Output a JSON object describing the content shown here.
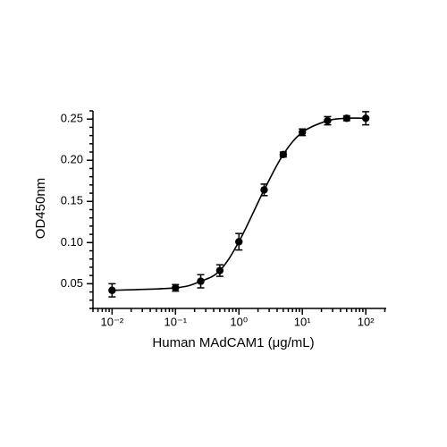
{
  "chart_data": {
    "type": "scatter",
    "x_label": "Human MAdCAM1 (μg/mL)",
    "y_label": "OD450nm",
    "x": [
      0.01,
      0.1,
      0.25,
      0.5,
      1,
      2.5,
      5,
      10,
      25,
      50,
      100
    ],
    "values": [
      0.042,
      0.045,
      0.053,
      0.066,
      0.101,
      0.164,
      0.207,
      0.234,
      0.248,
      0.251,
      0.251
    ],
    "errors": [
      0.008,
      0.004,
      0.008,
      0.007,
      0.01,
      0.007,
      0.003,
      0.004,
      0.005,
      0.003,
      0.008
    ],
    "color": "#000000",
    "x_log": true,
    "fit_curve": true,
    "xlim": [
      0.005,
      210
    ],
    "xticks": [
      {
        "value": 0.01,
        "label": "10⁻²"
      },
      {
        "value": 0.1,
        "label": "10⁻¹"
      },
      {
        "value": 1,
        "label": "10⁰"
      },
      {
        "value": 10,
        "label": "10¹"
      },
      {
        "value": 100,
        "label": "10²"
      }
    ],
    "ylim": [
      0.02,
      0.26
    ],
    "yticks": [
      0.05,
      {
        "value": 0.1,
        "label": "0.10"
      },
      0.15,
      {
        "value": 0.2,
        "label": "0.20"
      },
      0.25
    ]
  }
}
